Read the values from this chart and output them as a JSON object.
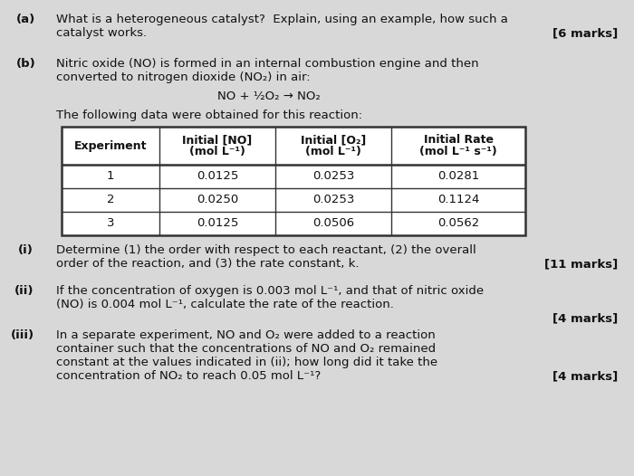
{
  "bg_color": "#d8d8d8",
  "text_color": "#111111",
  "figsize": [
    7.0,
    5.26
  ],
  "dpi": 100,
  "part_a_label": "(a)",
  "part_a_text_line1": "What is a heterogeneous catalyst?  Explain, using an example, how such a",
  "part_a_text_line2": "catalyst works.",
  "part_a_marks": "[6 marks]",
  "part_b_label": "(b)",
  "part_b_text_line1": "Nitric oxide (NO) is formed in an internal combustion engine and then",
  "part_b_text_line2": "converted to nitrogen dioxide (NO₂) in air:",
  "equation": "NO + ½O₂ → NO₂",
  "table_intro": "The following data were obtained for this reaction:",
  "table_headers": [
    "Experiment",
    "Initial [NO]\n(mol L⁻¹)",
    "Initial [O₂]\n(mol L⁻¹)",
    "Initial Rate\n(mol L⁻¹ s⁻¹)"
  ],
  "table_data": [
    [
      "1",
      "0.0125",
      "0.0253",
      "0.0281"
    ],
    [
      "2",
      "0.0250",
      "0.0253",
      "0.1124"
    ],
    [
      "3",
      "0.0125",
      "0.0506",
      "0.0562"
    ]
  ],
  "part_i_label": "(i)",
  "part_i_text_line1": "Determine (1) the order with respect to each reactant, (2) the overall",
  "part_i_text_line2": "order of the reaction, and (3) the rate constant, k.",
  "part_i_marks": "[11 marks]",
  "part_ii_label": "(ii)",
  "part_ii_text_line1": "If the concentration of oxygen is 0.003 mol L⁻¹, and that of nitric oxide",
  "part_ii_text_line2": "(NO) is 0.004 mol L⁻¹, calculate the rate of the reaction.",
  "part_ii_marks": "[4 marks]",
  "part_iii_label": "(iii)",
  "part_iii_text_line1": "In a separate experiment, NO and O₂ were added to a reaction",
  "part_iii_text_line2": "container such that the concentrations of NO and O₂ remained",
  "part_iii_text_line3": "constant at the values indicated in (ii); how long did it take the",
  "part_iii_text_line4": "concentration of NO₂ to reach 0.05 mol L⁻¹?",
  "part_iii_marks": "[4 marks]"
}
